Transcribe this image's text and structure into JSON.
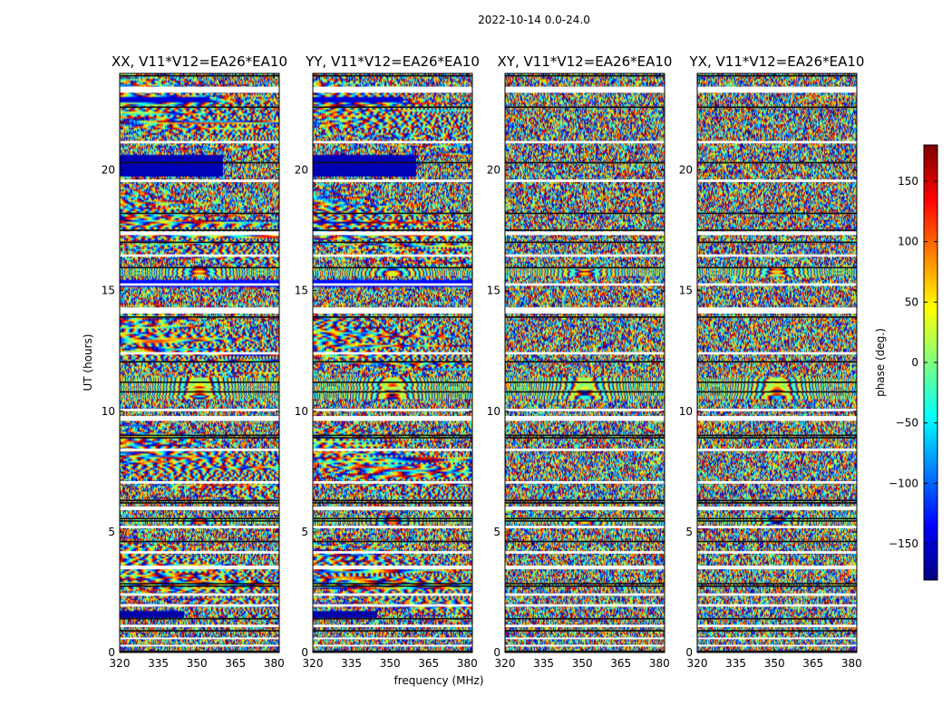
{
  "chart_data": {
    "type": "heatmap",
    "suptitle": "2022-10-14 0.0-24.0",
    "xlabel": "frequency (MHz)",
    "ylabel": "UT (hours)",
    "xlim": [
      320,
      382
    ],
    "ylim": [
      0,
      24
    ],
    "xticks": [
      320,
      335,
      350,
      365,
      380
    ],
    "yticks": [
      0,
      5,
      10,
      15,
      20
    ],
    "colormap": "jet",
    "colorbar": {
      "label": "phase (deg.)",
      "range": [
        -180,
        180
      ],
      "ticks": [
        -150,
        -100,
        -50,
        0,
        50,
        100,
        150
      ],
      "tick_labels": [
        "−150",
        "−100",
        "−50",
        "0",
        "50",
        "100",
        "150"
      ]
    },
    "flagged_bands_hours": [
      [
        23.2,
        23.45
      ],
      [
        21.1,
        21.2
      ],
      [
        19.5,
        19.6
      ],
      [
        17.3,
        17.45
      ],
      [
        16.4,
        16.5
      ],
      [
        15.2,
        15.3
      ],
      [
        14.05,
        14.3
      ],
      [
        12.35,
        12.45
      ],
      [
        10.0,
        10.1
      ],
      [
        9.6,
        9.8
      ],
      [
        8.35,
        8.45
      ],
      [
        7.0,
        7.1
      ],
      [
        5.9,
        6.05
      ],
      [
        5.15,
        5.25
      ],
      [
        4.1,
        4.2
      ],
      [
        3.45,
        3.6
      ],
      [
        2.35,
        2.45
      ],
      [
        1.9,
        2.0
      ],
      [
        1.05,
        1.15
      ],
      [
        0.55,
        0.62
      ],
      [
        0.25,
        0.32
      ]
    ],
    "dark_lines_hours": [
      23.9,
      22.6,
      20.3,
      18.2,
      17.5,
      17.0,
      15.95,
      13.9,
      12.05,
      11.2,
      10.8,
      9.0,
      8.9,
      6.3,
      6.2,
      5.55,
      5.45,
      4.6,
      2.85,
      2.75,
      1.4,
      0.9,
      0.05
    ],
    "uniform_blocks": [
      {
        "panels": [
          0,
          1
        ],
        "t0": 19.75,
        "t1": 20.65,
        "f0": 320,
        "f1": 360,
        "phase": -160
      },
      {
        "panels": [
          0,
          1
        ],
        "t0": 15.15,
        "t1": 15.45,
        "f0": 320,
        "f1": 382,
        "phase": -130
      },
      {
        "panels": [
          0,
          1
        ],
        "t0": 1.4,
        "t1": 1.7,
        "f0": 320,
        "f1": 345,
        "phase": -165
      },
      {
        "panels": [
          0,
          1
        ],
        "t0": 22.8,
        "t1": 23.0,
        "f0": 320,
        "f1": 355,
        "phase": -150
      }
    ],
    "fringe_bands_hours": [
      [
        10.5,
        11.4
      ],
      [
        15.6,
        16.0
      ],
      [
        5.3,
        5.6
      ]
    ],
    "panels": [
      {
        "title": "XX, V11*V12=EA26*EA10",
        "seed": 11
      },
      {
        "title": "YY, V11*V12=EA26*EA10",
        "seed": 23
      },
      {
        "title": "XY, V11*V12=EA26*EA10",
        "seed": 37
      },
      {
        "title": "YX, V11*V12=EA26*EA10",
        "seed": 53
      }
    ]
  }
}
